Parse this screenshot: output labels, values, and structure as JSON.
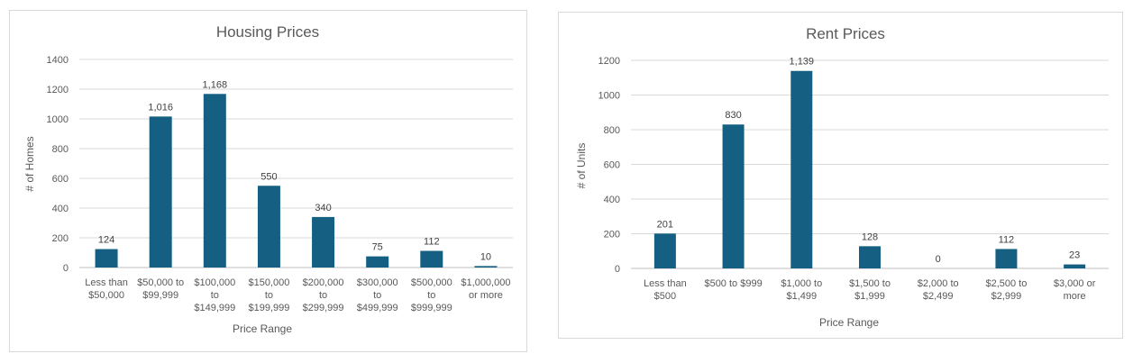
{
  "colors": {
    "bar": "#156082"
  },
  "chart_data": [
    {
      "type": "bar",
      "title": "Housing Prices",
      "xlabel": "Price Range",
      "ylabel": "# of Homes",
      "ylim": [
        0,
        1400
      ],
      "yticks": [
        0,
        200,
        400,
        600,
        800,
        1000,
        1200,
        1400
      ],
      "ytick_labels": [
        "0",
        "200",
        "400",
        "600",
        "800",
        "1000",
        "1200",
        "1400"
      ],
      "categories": [
        [
          "Less than",
          "$50,000"
        ],
        [
          "$50,000 to",
          "$99,999"
        ],
        [
          "$100,000",
          "to",
          "$149,999"
        ],
        [
          "$150,000",
          "to",
          "$199,999"
        ],
        [
          "$200,000",
          "to",
          "$299,999"
        ],
        [
          "$300,000",
          "to",
          "$499,999"
        ],
        [
          "$500,000",
          "to",
          "$999,999"
        ],
        [
          "$1,000,000",
          "or more"
        ]
      ],
      "values": [
        124,
        1016,
        1168,
        550,
        340,
        75,
        112,
        10
      ],
      "data_labels": [
        "124",
        "1,016",
        "1,168",
        "550",
        "340",
        "75",
        "112",
        "10"
      ],
      "grid": true
    },
    {
      "type": "bar",
      "title": "Rent Prices",
      "xlabel": "Price Range",
      "ylabel": "# of Units",
      "ylim": [
        0,
        1200
      ],
      "yticks": [
        0,
        200,
        400,
        600,
        800,
        1000,
        1200
      ],
      "ytick_labels": [
        "0",
        "200",
        "400",
        "600",
        "800",
        "1000",
        "1200"
      ],
      "categories": [
        [
          "Less than",
          "$500"
        ],
        [
          "$500 to $999"
        ],
        [
          "$1,000 to",
          "$1,499"
        ],
        [
          "$1,500 to",
          "$1,999"
        ],
        [
          "$2,000 to",
          "$2,499"
        ],
        [
          "$2,500 to",
          "$2,999"
        ],
        [
          "$3,000 or",
          "more"
        ]
      ],
      "values": [
        201,
        830,
        1139,
        128,
        0,
        112,
        23
      ],
      "data_labels": [
        "201",
        "830",
        "1,139",
        "128",
        "0",
        "112",
        "23"
      ],
      "grid": true
    }
  ]
}
